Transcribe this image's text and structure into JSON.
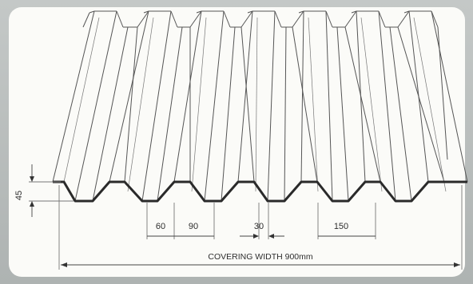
{
  "drawing": {
    "dimensions": {
      "height": "45",
      "rib_base": "60",
      "pan": "90",
      "rib_top": "30",
      "pitch": "150",
      "covering_width": "COVERING WIDTH 900mm"
    },
    "colors": {
      "background": "#b8bcbb",
      "panel": "#fbfbf8",
      "line": "#3a3a3a"
    }
  }
}
